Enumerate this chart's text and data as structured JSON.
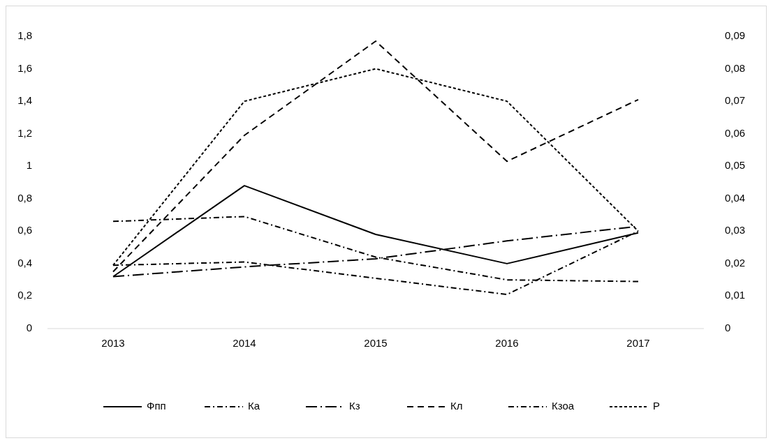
{
  "chart_data": {
    "type": "line",
    "categories": [
      "2013",
      "2014",
      "2015",
      "2016",
      "2017"
    ],
    "series": [
      {
        "name": "Фпп",
        "color": "#000000",
        "line_style": "solid",
        "values": [
          0.32,
          0.88,
          0.58,
          0.4,
          0.59
        ]
      },
      {
        "name": "Ка",
        "color": "#000000",
        "line_style": "dashdot",
        "values": [
          0.66,
          0.69,
          0.44,
          0.3,
          0.29
        ]
      },
      {
        "name": "Кз",
        "color": "#000000",
        "line_style": "longdashdot",
        "values": [
          0.32,
          0.38,
          0.43,
          0.54,
          0.63
        ]
      },
      {
        "name": "Кл",
        "color": "#000000",
        "line_style": "dashed",
        "values": [
          0.35,
          1.19,
          1.77,
          1.03,
          1.41
        ]
      },
      {
        "name": "Кзоа",
        "color": "#000000",
        "line_style": "dashdot",
        "values": [
          0.39,
          0.41,
          0.31,
          0.21,
          0.6
        ]
      },
      {
        "name": "Р",
        "color": "#000000",
        "line_style": "dotted",
        "axis": "y2",
        "values": [
          0.0195,
          0.07,
          0.08,
          0.07,
          0.03
        ]
      }
    ],
    "ylim": [
      0,
      1.8
    ],
    "yticks": [
      0,
      {
        "value": 0.2,
        "label": "0,2"
      },
      {
        "value": 0.4,
        "label": "0,4"
      },
      {
        "value": 0.6,
        "label": "0,6"
      },
      {
        "value": 0.8,
        "label": "0,8"
      },
      1,
      {
        "value": 1.2,
        "label": "1,2"
      },
      {
        "value": 1.4,
        "label": "1,4"
      },
      {
        "value": 1.6,
        "label": "1,6"
      },
      {
        "value": 1.8,
        "label": "1,8"
      }
    ],
    "y2lim": [
      0,
      0.09
    ],
    "y2ticks": [
      0,
      {
        "value": 0.01,
        "label": "0,01"
      },
      {
        "value": 0.02,
        "label": "0,02"
      },
      {
        "value": 0.03,
        "label": "0,03"
      },
      {
        "value": 0.04,
        "label": "0,04"
      },
      {
        "value": 0.05,
        "label": "0,05"
      },
      {
        "value": 0.06,
        "label": "0,06"
      },
      {
        "value": 0.07,
        "label": "0,07"
      },
      {
        "value": 0.08,
        "label": "0,08"
      },
      {
        "value": 0.09,
        "label": "0,09"
      }
    ],
    "legend": "bottom",
    "marker": "none"
  }
}
